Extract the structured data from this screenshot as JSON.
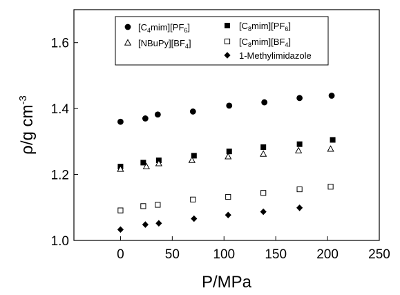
{
  "chart_data": {
    "type": "scatter",
    "xlabel": "P/MPa",
    "ylabel": "ρ/g cm",
    "ylabel_sup": "-3",
    "xlim": [
      -45,
      250
    ],
    "ylim": [
      1.0,
      1.7
    ],
    "xticks": [
      0,
      50,
      100,
      150,
      200,
      250
    ],
    "yticks": [
      1.0,
      1.2,
      1.4,
      1.6
    ],
    "ytick_labels": [
      "1.0",
      "1.2",
      "1.4",
      "1.6"
    ],
    "grid": false,
    "legend_position": "top-center",
    "series": [
      {
        "name": "[C4mim][PF6]",
        "legend": [
          {
            "t": "[C"
          },
          {
            "t": "4",
            "sub": true
          },
          {
            "t": "mim][PF"
          },
          {
            "t": "6",
            "sub": true
          },
          {
            "t": "]"
          }
        ],
        "marker": "filled-circle",
        "x": [
          0,
          24,
          36,
          70,
          105,
          139,
          173,
          204
        ],
        "y": [
          1.36,
          1.37,
          1.382,
          1.391,
          1.409,
          1.419,
          1.432,
          1.439
        ]
      },
      {
        "name": "[C8mim][PF6]",
        "legend": [
          {
            "t": "[C"
          },
          {
            "t": "8",
            "sub": true
          },
          {
            "t": "mim][PF"
          },
          {
            "t": "6",
            "sub": true
          },
          {
            "t": "]"
          }
        ],
        "marker": "filled-square",
        "x": [
          0,
          22,
          37,
          71,
          105,
          138,
          173,
          205
        ],
        "y": [
          1.224,
          1.236,
          1.243,
          1.257,
          1.27,
          1.283,
          1.292,
          1.305
        ]
      },
      {
        "name": "[NBuPy][BF4]",
        "legend": [
          {
            "t": "[NBuPy][BF"
          },
          {
            "t": "4",
            "sub": true
          },
          {
            "t": "]"
          }
        ],
        "marker": "open-triangle",
        "x": [
          0,
          25,
          37,
          69,
          104,
          138,
          172,
          203
        ],
        "y": [
          1.216,
          1.224,
          1.233,
          1.243,
          1.254,
          1.262,
          1.272,
          1.277
        ]
      },
      {
        "name": "[C8mim][BF4]",
        "legend": [
          {
            "t": "[C"
          },
          {
            "t": "8",
            "sub": true
          },
          {
            "t": "mim][BF"
          },
          {
            "t": "4",
            "sub": true
          },
          {
            "t": "]"
          }
        ],
        "marker": "open-square",
        "x": [
          0,
          22,
          36,
          70,
          104,
          138,
          173,
          203
        ],
        "y": [
          1.091,
          1.104,
          1.108,
          1.124,
          1.132,
          1.144,
          1.155,
          1.163
        ]
      },
      {
        "name": "1-Methylimidazole",
        "legend": [
          {
            "t": "1-Methylimidazole"
          }
        ],
        "marker": "filled-diamond",
        "x": [
          0,
          24,
          37,
          71,
          104,
          138,
          173
        ],
        "y": [
          1.033,
          1.048,
          1.052,
          1.066,
          1.077,
          1.087,
          1.099
        ]
      }
    ]
  }
}
